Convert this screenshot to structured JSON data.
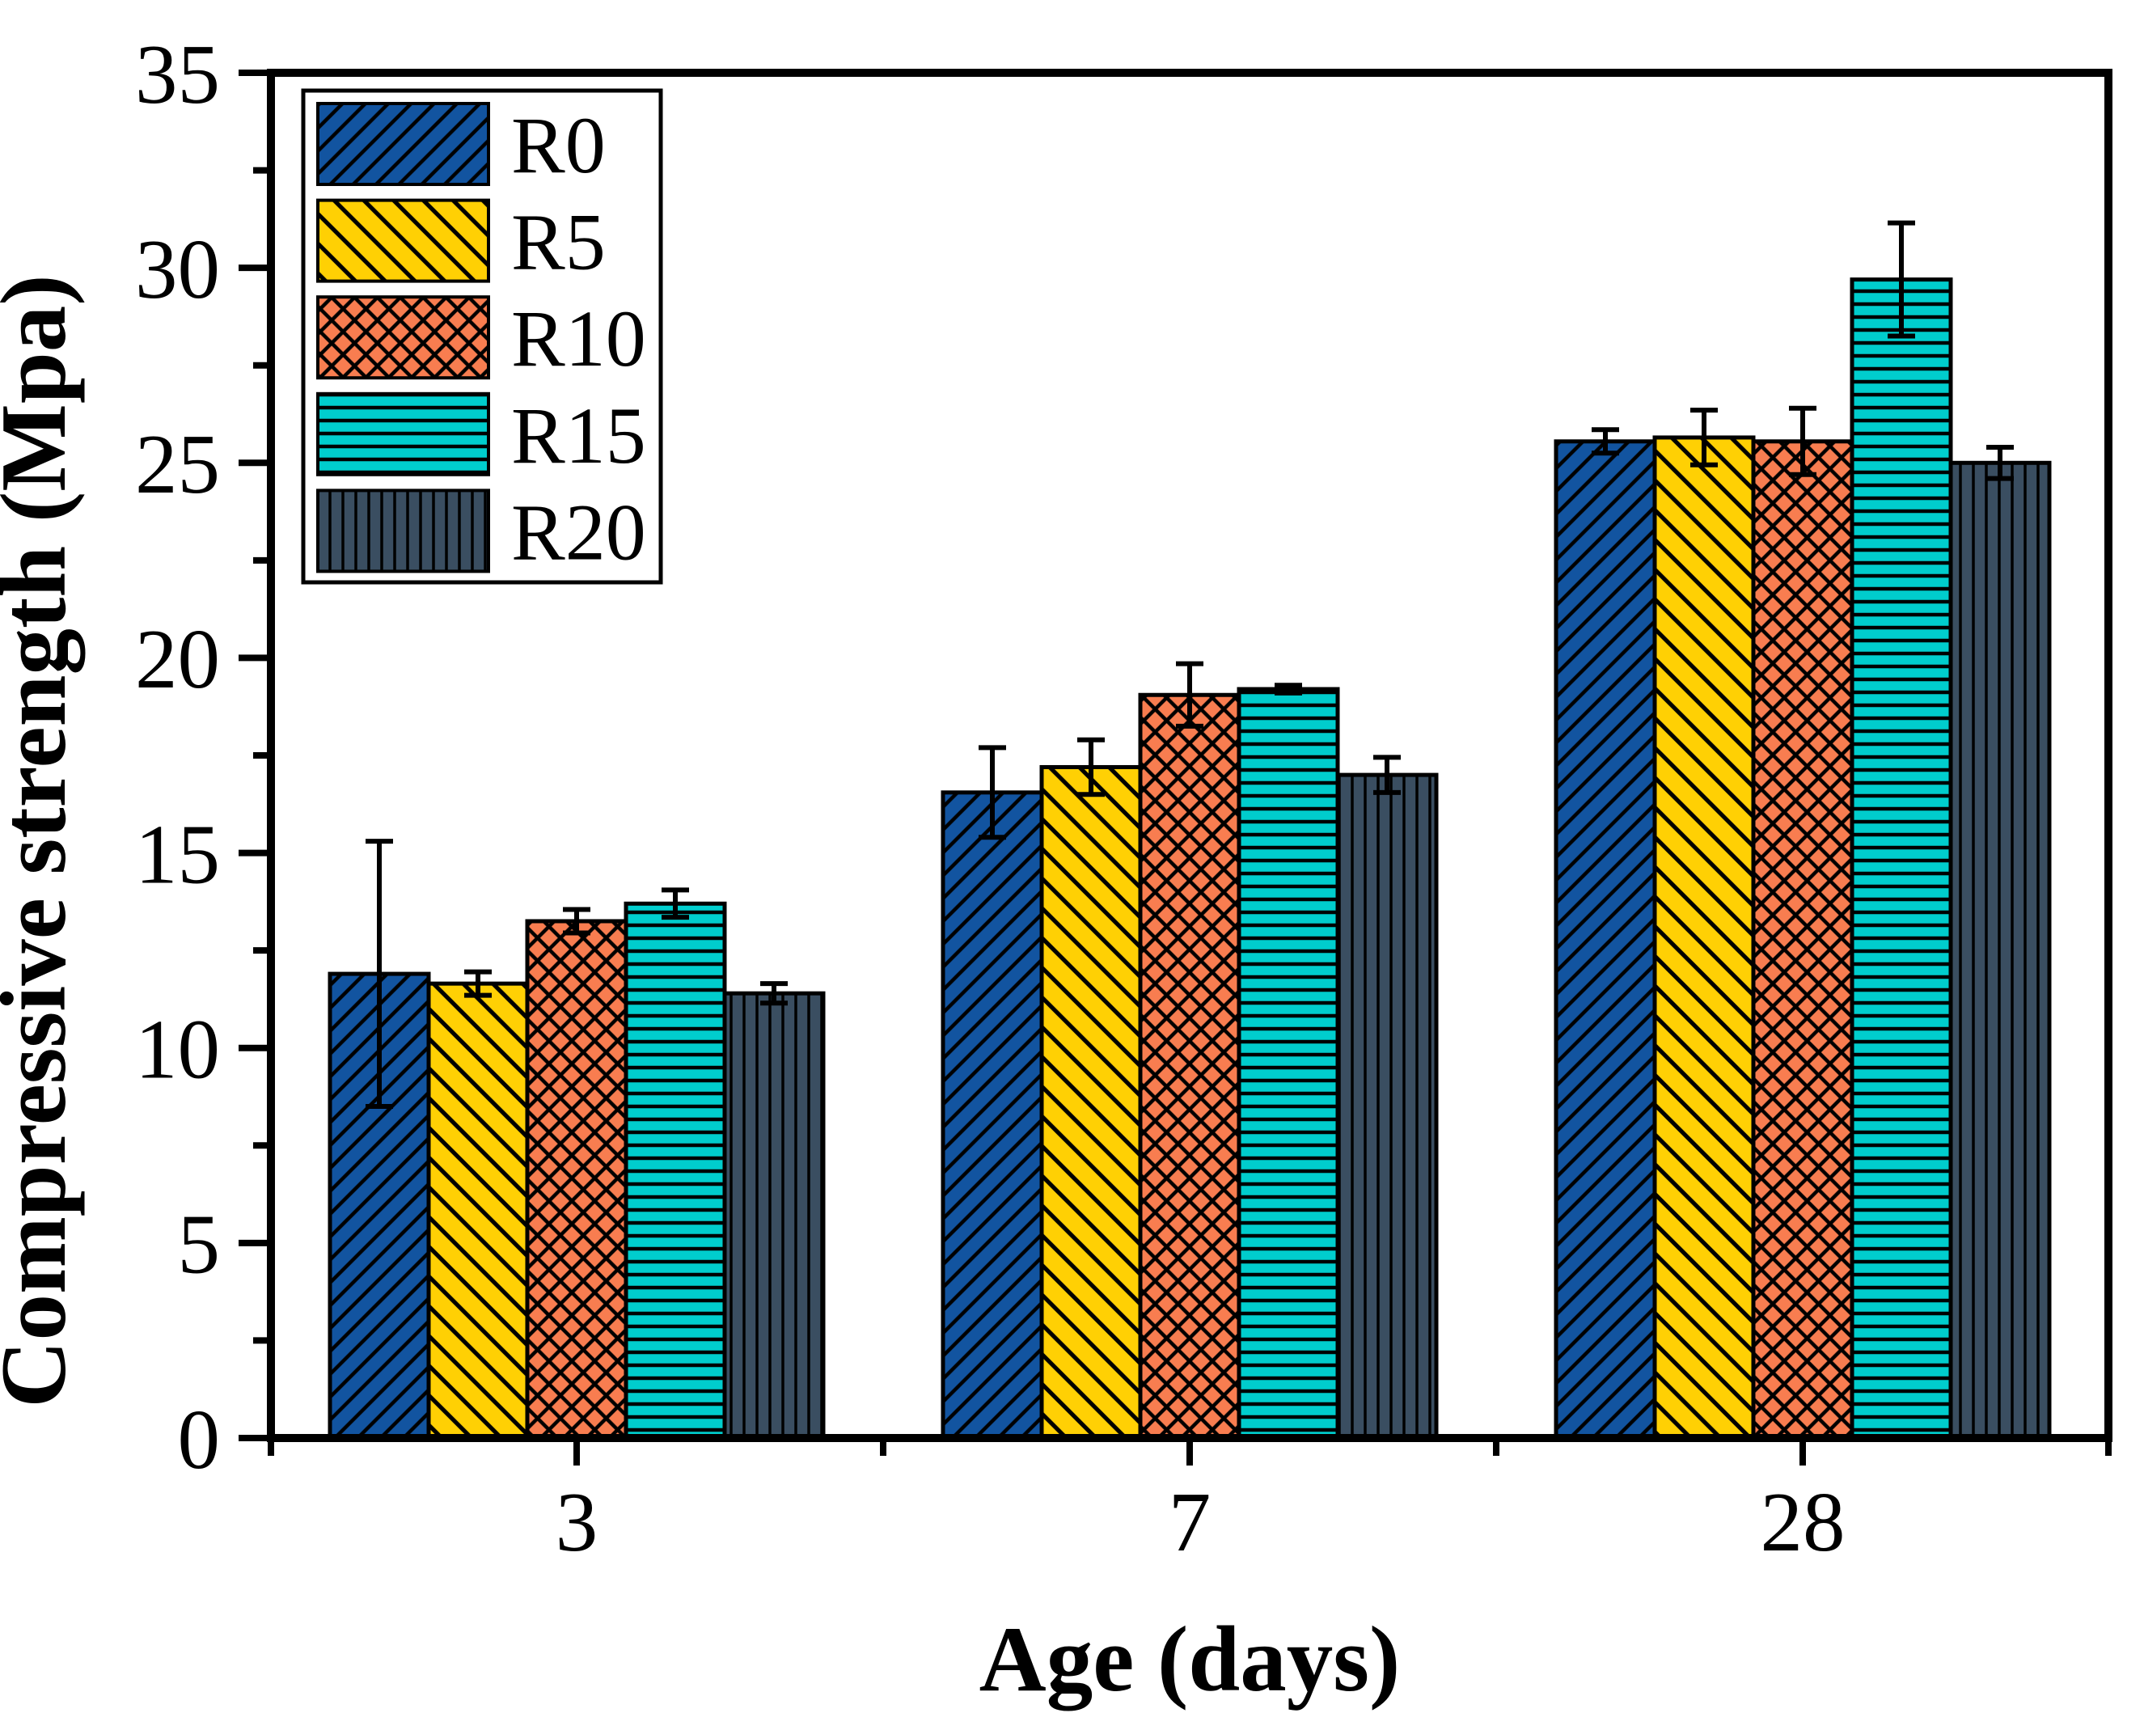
{
  "chart_data": {
    "type": "bar",
    "title": "",
    "xlabel": "Age (days)",
    "ylabel": "Compressive strength (Mpa)",
    "categories": [
      "3",
      "7",
      "28"
    ],
    "series": [
      {
        "name": "R0",
        "color": "#1254A0",
        "hatch": "diagonal-up",
        "values": [
          11.9,
          16.55,
          25.55
        ],
        "errors": [
          3.4,
          1.15,
          0.3
        ]
      },
      {
        "name": "R5",
        "color": "#FFD004",
        "hatch": "diagonal-down",
        "values": [
          11.65,
          17.2,
          25.65
        ],
        "errors": [
          0.3,
          0.7,
          0.7
        ]
      },
      {
        "name": "R10",
        "color": "#F87D50",
        "hatch": "cross-diagonal",
        "values": [
          13.25,
          19.05,
          25.55
        ],
        "errors": [
          0.3,
          0.8,
          0.85
        ]
      },
      {
        "name": "R15",
        "color": "#00CDCD",
        "hatch": "horizontal",
        "values": [
          13.7,
          19.2,
          29.7
        ],
        "errors": [
          0.35,
          0.1,
          1.45
        ]
      },
      {
        "name": "R20",
        "color": "#3A4E61",
        "hatch": "vertical",
        "values": [
          11.4,
          17.0,
          25.0
        ],
        "errors": [
          0.25,
          0.45,
          0.4
        ]
      }
    ],
    "ylim": [
      0,
      35
    ],
    "y_major_ticks": [
      0,
      5,
      10,
      15,
      20,
      25,
      30,
      35
    ],
    "y_major_tick_labels": [
      "0",
      "5",
      "10",
      "15",
      "20",
      "25",
      "30",
      "35"
    ],
    "y_minor_ticks": [
      2.5,
      7.5,
      12.5,
      17.5,
      22.5,
      27.5,
      32.5
    ],
    "error_bars": true,
    "bar_edge_color": "#000000",
    "axis_color": "#000000",
    "background_color": "#ffffff",
    "grid": false,
    "legend_position": "top-left",
    "legend_labels": [
      "R0",
      "R5",
      "R10",
      "R15",
      "R20"
    ]
  }
}
